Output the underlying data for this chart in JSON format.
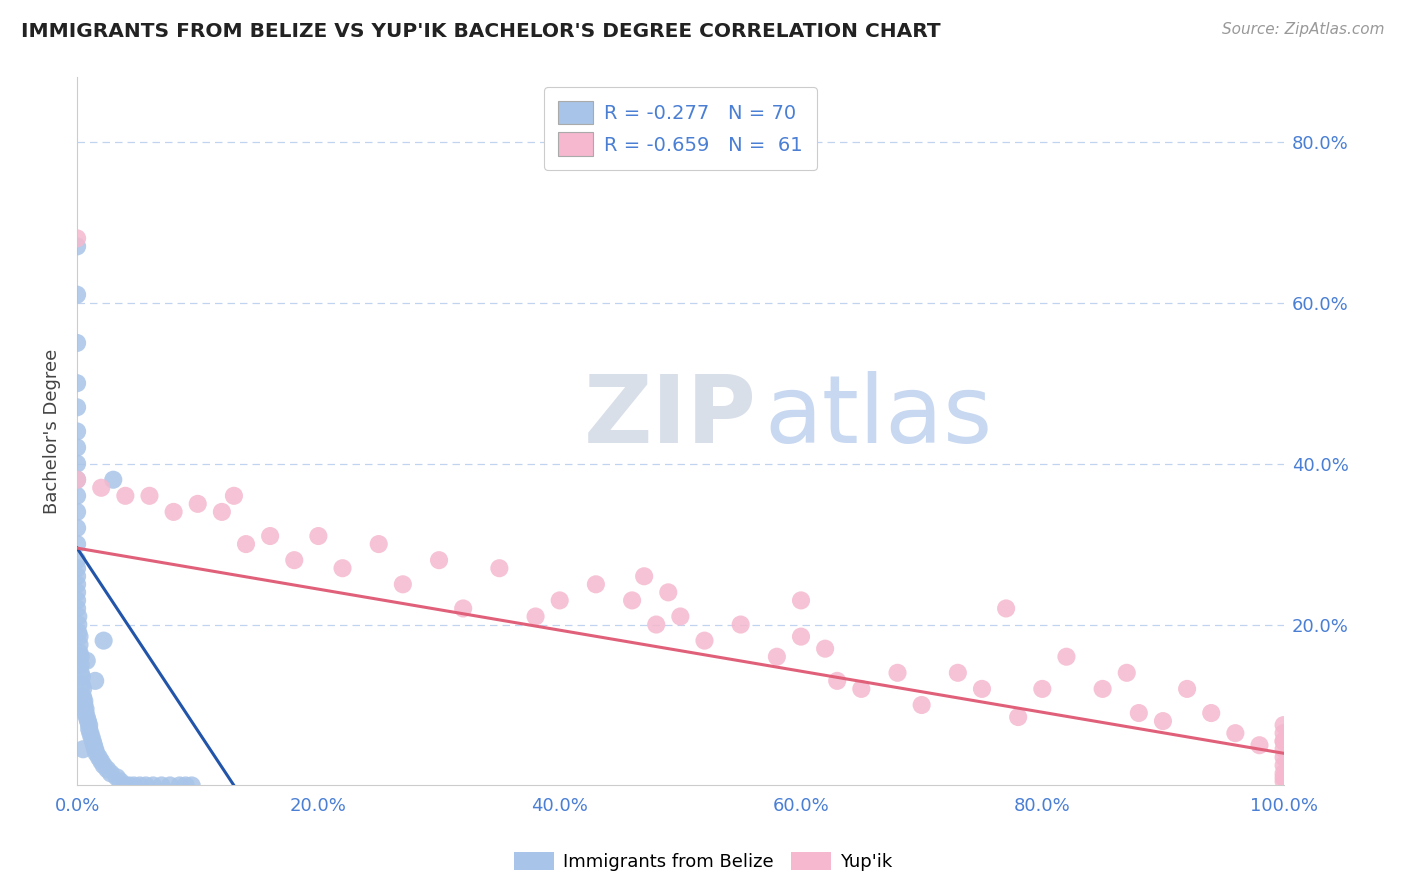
{
  "title": "IMMIGRANTS FROM BELIZE VS YUP'IK BACHELOR'S DEGREE CORRELATION CHART",
  "source": "Source: ZipAtlas.com",
  "ylabel": "Bachelor's Degree",
  "legend_label1": "Immigrants from Belize",
  "legend_label2": "Yup'ik",
  "r1": -0.277,
  "n1": 70,
  "r2": -0.659,
  "n2": 61,
  "color1": "#a8c4e8",
  "color2": "#f5b8ce",
  "line_color1": "#2255aa",
  "line_color2": "#e0607a",
  "axis_color": "#4a7fd4",
  "title_color": "#222222",
  "background_color": "#ffffff",
  "grid_color": "#c0d4f0",
  "watermark_color": "#dde8f5",
  "xlim": [
    0.0,
    1.0
  ],
  "ylim": [
    0.0,
    0.88
  ],
  "ytick_vals": [
    0.2,
    0.4,
    0.6,
    0.8
  ],
  "xtick_vals": [
    0.0,
    0.2,
    0.4,
    0.6,
    0.8,
    1.0
  ],
  "belize_x": [
    0.0,
    0.0,
    0.0,
    0.0,
    0.0,
    0.0,
    0.0,
    0.0,
    0.0,
    0.0,
    0.0,
    0.0,
    0.0,
    0.0,
    0.0,
    0.0,
    0.0,
    0.0,
    0.0,
    0.0,
    0.001,
    0.001,
    0.001,
    0.002,
    0.002,
    0.002,
    0.003,
    0.003,
    0.003,
    0.004,
    0.004,
    0.005,
    0.005,
    0.006,
    0.006,
    0.007,
    0.007,
    0.008,
    0.009,
    0.01,
    0.01,
    0.011,
    0.012,
    0.013,
    0.014,
    0.015,
    0.016,
    0.018,
    0.02,
    0.022,
    0.025,
    0.028,
    0.03,
    0.033,
    0.036,
    0.04,
    0.043,
    0.047,
    0.052,
    0.057,
    0.063,
    0.07,
    0.077,
    0.085,
    0.09,
    0.095,
    0.022,
    0.008,
    0.005,
    0.015
  ],
  "belize_y": [
    0.67,
    0.61,
    0.55,
    0.5,
    0.47,
    0.44,
    0.42,
    0.4,
    0.38,
    0.36,
    0.34,
    0.32,
    0.3,
    0.28,
    0.27,
    0.26,
    0.25,
    0.24,
    0.23,
    0.22,
    0.21,
    0.2,
    0.19,
    0.185,
    0.175,
    0.165,
    0.16,
    0.15,
    0.14,
    0.135,
    0.125,
    0.12,
    0.11,
    0.105,
    0.1,
    0.095,
    0.09,
    0.085,
    0.08,
    0.075,
    0.07,
    0.065,
    0.06,
    0.055,
    0.05,
    0.045,
    0.04,
    0.035,
    0.03,
    0.025,
    0.02,
    0.015,
    0.38,
    0.01,
    0.005,
    0.0,
    0.0,
    0.0,
    0.0,
    0.0,
    0.0,
    0.0,
    0.0,
    0.0,
    0.0,
    0.0,
    0.18,
    0.155,
    0.045,
    0.13
  ],
  "yupik_x": [
    0.0,
    0.0,
    0.02,
    0.04,
    0.06,
    0.08,
    0.1,
    0.12,
    0.13,
    0.14,
    0.16,
    0.18,
    0.2,
    0.22,
    0.25,
    0.27,
    0.3,
    0.32,
    0.35,
    0.38,
    0.4,
    0.43,
    0.46,
    0.48,
    0.5,
    0.52,
    0.55,
    0.58,
    0.6,
    0.63,
    0.65,
    0.68,
    0.7,
    0.73,
    0.75,
    0.77,
    0.8,
    0.82,
    0.85,
    0.87,
    0.9,
    0.92,
    0.94,
    0.96,
    0.98,
    1.0,
    1.0,
    1.0,
    1.0,
    1.0,
    1.0,
    1.0,
    1.0,
    1.0,
    1.0,
    0.47,
    0.49,
    0.6,
    0.62,
    0.78,
    0.88
  ],
  "yupik_y": [
    0.38,
    0.68,
    0.37,
    0.36,
    0.36,
    0.34,
    0.35,
    0.34,
    0.36,
    0.3,
    0.31,
    0.28,
    0.31,
    0.27,
    0.3,
    0.25,
    0.28,
    0.22,
    0.27,
    0.21,
    0.23,
    0.25,
    0.23,
    0.2,
    0.21,
    0.18,
    0.2,
    0.16,
    0.23,
    0.13,
    0.12,
    0.14,
    0.1,
    0.14,
    0.12,
    0.22,
    0.12,
    0.16,
    0.12,
    0.14,
    0.08,
    0.12,
    0.09,
    0.065,
    0.05,
    0.075,
    0.065,
    0.055,
    0.045,
    0.035,
    0.025,
    0.015,
    0.01,
    0.005,
    0.055,
    0.26,
    0.24,
    0.185,
    0.17,
    0.085,
    0.09
  ],
  "belize_line_x": [
    0.0,
    0.13
  ],
  "belize_line_y": [
    0.295,
    0.0
  ],
  "yupik_line_x": [
    0.0,
    1.0
  ],
  "yupik_line_y": [
    0.295,
    0.04
  ]
}
